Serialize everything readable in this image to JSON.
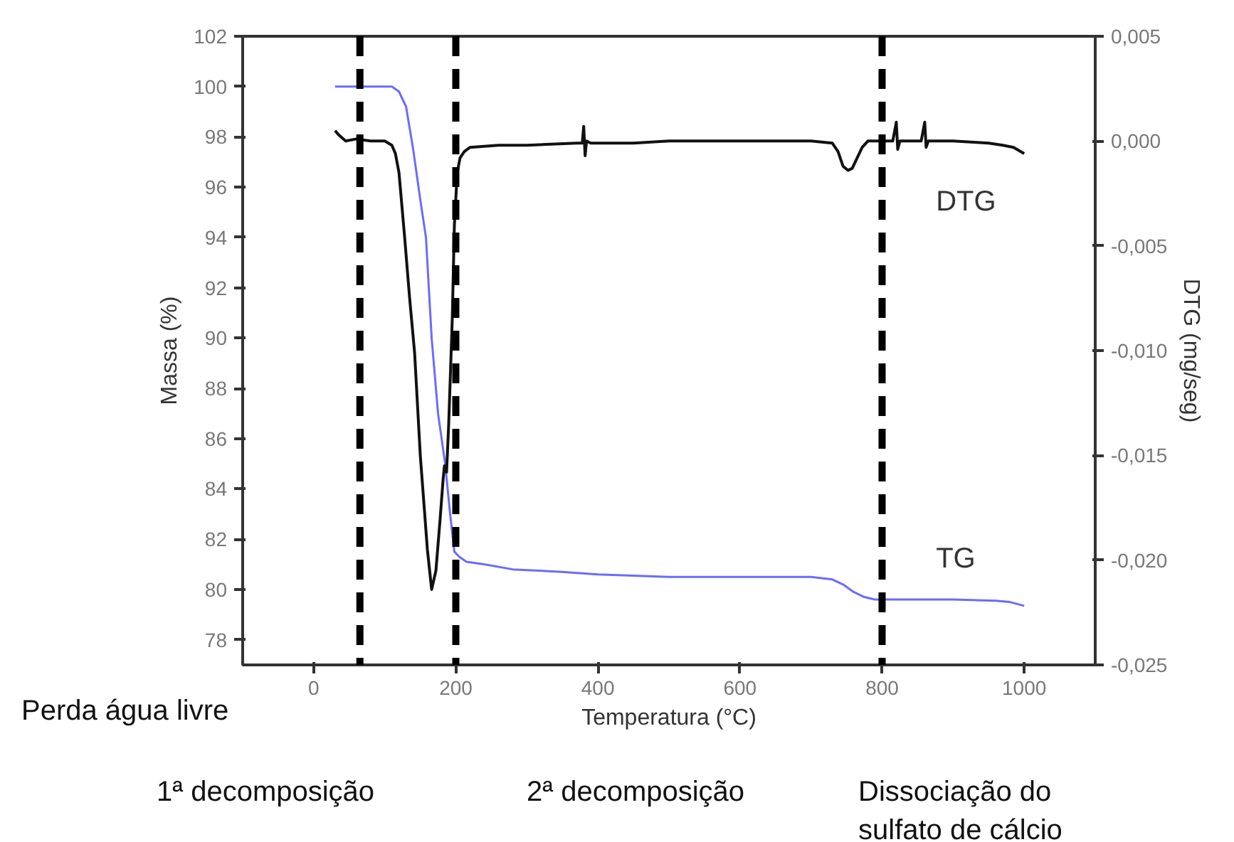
{
  "chart_data": {
    "type": "line",
    "xlabel": "Temperatura (°C)",
    "ylabel": "Massa (%)",
    "y2label": "DTG (mg/seg)",
    "xlim": [
      -100,
      1100
    ],
    "xticks": [
      0,
      200,
      400,
      600,
      800,
      1000
    ],
    "ylim": [
      77,
      102
    ],
    "yticks": [
      78,
      80,
      82,
      84,
      86,
      88,
      90,
      92,
      94,
      96,
      98,
      100,
      102
    ],
    "y2lim": [
      -0.025,
      0.005
    ],
    "y2ticks": [
      {
        "value": -0.025,
        "label": "-0,025"
      },
      {
        "value": -0.02,
        "label": "-0,020"
      },
      {
        "value": -0.015,
        "label": "-0,015"
      },
      {
        "value": -0.01,
        "label": "-0,010"
      },
      {
        "value": -0.005,
        "label": "-0,005"
      },
      {
        "value": 0,
        "label": "0,000"
      },
      {
        "value": 0.005,
        "label": "0,005"
      }
    ],
    "grid": false,
    "legend": false,
    "marker": "none",
    "line_style": "solid",
    "series": [
      {
        "name": "TG",
        "color": "#6b6bff",
        "x": [
          30,
          60,
          100,
          110,
          120,
          130,
          140,
          150,
          158,
          166,
          175,
          185,
          192,
          198,
          205,
          215,
          240,
          280,
          350,
          400,
          500,
          600,
          700,
          730,
          745,
          760,
          775,
          790,
          800,
          850,
          900,
          960,
          980,
          1000
        ],
        "values": [
          100.0,
          100.0,
          100.0,
          100.0,
          99.8,
          99.2,
          97.5,
          95.5,
          94.0,
          90.0,
          87.0,
          85.0,
          83.0,
          81.5,
          81.3,
          81.1,
          81.0,
          80.8,
          80.7,
          80.6,
          80.5,
          80.5,
          80.5,
          80.4,
          80.2,
          79.9,
          79.7,
          79.6,
          79.6,
          79.6,
          79.6,
          79.55,
          79.5,
          79.35
        ]
      },
      {
        "name": "DTG",
        "color": "#111111",
        "axis": "y2",
        "x": [
          30,
          35,
          45,
          60,
          80,
          100,
          110,
          115,
          120,
          128,
          135,
          142,
          150,
          160,
          166,
          172,
          178,
          182,
          184,
          187,
          190,
          195,
          198,
          202,
          206,
          212,
          220,
          260,
          300,
          370,
          378,
          380,
          382,
          384,
          390,
          450,
          500,
          600,
          700,
          730,
          738,
          745,
          752,
          758,
          765,
          772,
          780,
          800,
          815,
          820,
          822,
          825,
          855,
          860,
          862,
          865,
          900,
          950,
          970,
          985,
          1000
        ],
        "values": [
          0.0005,
          0.0003,
          0.0,
          0.0001,
          0.0,
          0.0,
          -0.0002,
          -0.0006,
          -0.0015,
          -0.0046,
          -0.0075,
          -0.0101,
          -0.015,
          -0.0195,
          -0.0214,
          -0.0205,
          -0.018,
          -0.0162,
          -0.0155,
          -0.0158,
          -0.0135,
          -0.0085,
          -0.004,
          -0.0015,
          -0.0008,
          -0.0005,
          -0.0003,
          -0.0002,
          -0.0002,
          -0.0001,
          -0.0001,
          0.0007,
          -0.0007,
          0.0,
          -0.0001,
          -0.0001,
          0.0,
          0.0,
          0.0,
          -0.0001,
          -0.0005,
          -0.0012,
          -0.0014,
          -0.0013,
          -0.0008,
          -0.0003,
          0.0,
          0.0,
          0.0,
          0.0009,
          -0.0004,
          0.0,
          0.0,
          0.0009,
          -0.0003,
          0.0,
          0.0,
          -0.0001,
          -0.0002,
          -0.0003,
          -0.0006
        ]
      }
    ],
    "ref_lines": [
      {
        "axis": "x",
        "value": 65,
        "color": "#000000",
        "line_style": "dashed"
      },
      {
        "axis": "x",
        "value": 200,
        "color": "#000000",
        "line_style": "dashed"
      },
      {
        "axis": "x",
        "value": 800,
        "color": "#000000",
        "line_style": "dashed"
      }
    ],
    "annotations": [
      "Perda água livre",
      "1ª decomposição",
      "2ª decomposição",
      "Dissociação do\nsulfato de cálcio"
    ]
  }
}
